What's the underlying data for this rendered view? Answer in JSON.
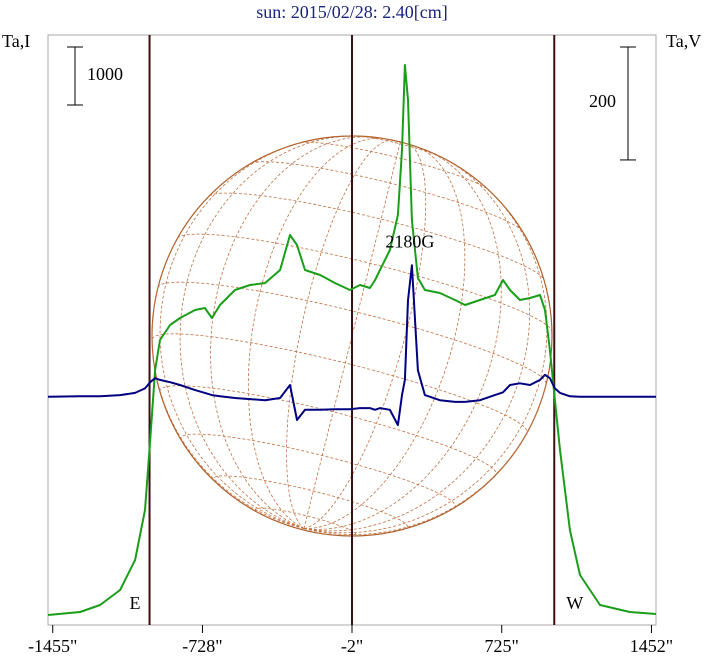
{
  "chart_data": {
    "type": "line",
    "title": "sun: 2015/02/28: 2.40[cm]",
    "ylabel": "Ta,I",
    "y2label": "Ta,V",
    "annotation": "2180G",
    "limb_labels": [
      "E",
      "W"
    ],
    "vlines": [
      -985,
      -2,
      980
    ],
    "scale_bars": [
      {
        "value": 1000,
        "axis": "y"
      },
      {
        "value": 200,
        "axis": "y2"
      }
    ],
    "xlim": [
      -1478,
      1474
    ],
    "xticks": [
      {
        "value": -1455,
        "label": "-1455\""
      },
      {
        "value": -728,
        "label": "-728\""
      },
      {
        "value": -2,
        "label": "-2\""
      },
      {
        "value": 725,
        "label": "725\""
      },
      {
        "value": 1452,
        "label": "1452\""
      }
    ],
    "ylim": [
      0,
      10000
    ],
    "y2lim": [
      -400,
      627
    ],
    "x": [
      -1478,
      -1322,
      -1225,
      -1128,
      -1055,
      -1007,
      -982,
      -958,
      -934,
      -885,
      -837,
      -764,
      -716,
      -682,
      -643,
      -570,
      -497,
      -424,
      -351,
      -303,
      -269,
      -230,
      -157,
      -85,
      -12,
      37,
      85,
      110,
      134,
      182,
      221,
      241,
      255,
      270,
      289,
      318,
      352,
      425,
      498,
      547,
      619,
      692,
      731,
      765,
      813,
      862,
      911,
      935,
      959,
      983,
      1008,
      1056,
      1105,
      1202,
      1347,
      1474
    ],
    "series": [
      {
        "name": "I",
        "color": "#1a9e1a",
        "axis": "y",
        "values": [
          172,
          224,
          345,
          603,
          1121,
          1983,
          3190,
          4397,
          4914,
          5172,
          5293,
          5431,
          5466,
          5293,
          5517,
          5776,
          5862,
          5897,
          6121,
          6724,
          6552,
          6121,
          6034,
          5897,
          5776,
          5862,
          5810,
          5948,
          6121,
          6466,
          7069,
          8190,
          9655,
          9052,
          6983,
          5983,
          5776,
          5724,
          5603,
          5517,
          5603,
          5690,
          5948,
          5776,
          5603,
          5638,
          5690,
          5431,
          4741,
          3879,
          3017,
          1638,
          862,
          345,
          224,
          190
        ]
      },
      {
        "name": "V",
        "color": "#000080",
        "axis": "y2",
        "values": [
          4,
          5,
          5,
          7,
          11,
          19,
          30,
          37,
          34,
          30,
          25,
          16,
          11,
          7,
          5,
          2,
          0,
          -2,
          2,
          25,
          -37,
          -19,
          -19,
          -18,
          -18,
          -16,
          -16,
          -19,
          -16,
          -19,
          -46,
          7,
          34,
          175,
          237,
          51,
          7,
          -2,
          -5,
          -5,
          -2,
          7,
          12,
          25,
          28,
          25,
          34,
          43,
          37,
          19,
          11,
          5,
          4,
          4,
          4,
          4
        ]
      }
    ]
  }
}
